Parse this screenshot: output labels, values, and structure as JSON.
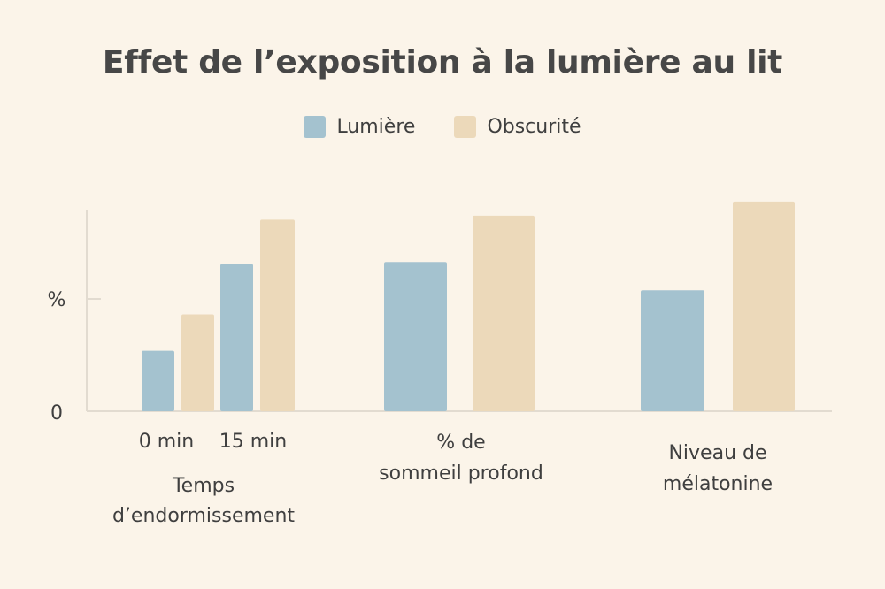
{
  "chart_data": {
    "type": "bar",
    "title": "Effet de l’exposition à la lumière au lit",
    "ylabel": "%",
    "yticks": [
      "0"
    ],
    "ylim": [
      0,
      100
    ],
    "legend_position": "top-center",
    "grid": false,
    "series_names": [
      "Lumière",
      "Obscurité"
    ],
    "colors": {
      "light": "#a4c2cf",
      "dark": "#ecd9ba"
    },
    "groups": [
      {
        "label_lines": [
          "Temps",
          "d’endormissement"
        ],
        "bars": [
          {
            "sub_label": "0 min",
            "series": 0,
            "value": 30
          },
          {
            "sub_label": "",
            "series": 1,
            "value": 48
          },
          {
            "sub_label": "15 min",
            "series": 0,
            "value": 73
          },
          {
            "sub_label": "",
            "series": 1,
            "value": 95
          }
        ]
      },
      {
        "label_lines": [
          "% de",
          "sommeil profond"
        ],
        "bars": [
          {
            "sub_label": "",
            "series": 0,
            "value": 74
          },
          {
            "sub_label": "",
            "series": 1,
            "value": 97
          }
        ]
      },
      {
        "label_lines": [
          "Niveau de",
          "mélatonine"
        ],
        "bars": [
          {
            "sub_label": "",
            "series": 0,
            "value": 60
          },
          {
            "sub_label": "",
            "series": 1,
            "value": 104
          }
        ]
      }
    ]
  }
}
